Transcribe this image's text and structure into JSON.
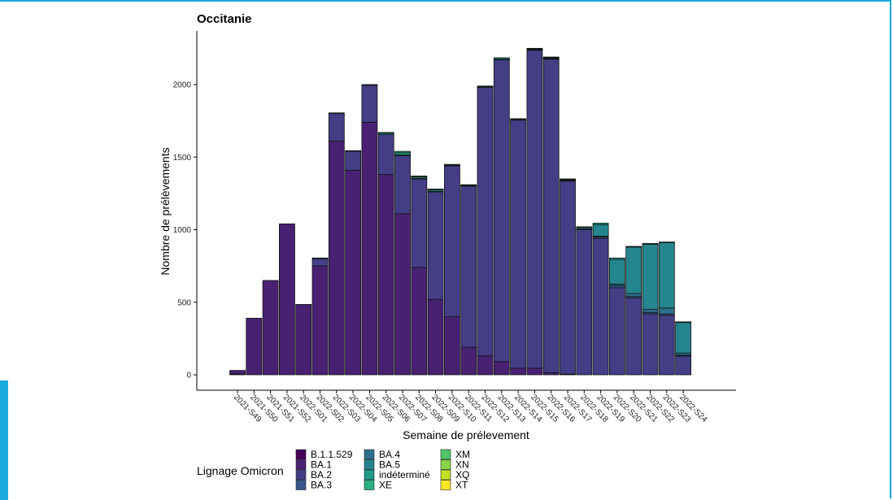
{
  "chart_data": {
    "type": "bar",
    "stacked": true,
    "title": "Occitanie",
    "xlabel": "Semaine de prélevement",
    "ylabel": "Nombre de prélèvements",
    "ylim": [
      0,
      2380
    ],
    "yticks": [
      0,
      500,
      1000,
      1500,
      2000
    ],
    "grid": false,
    "legend_position": "bottom",
    "legend_title": "Lignage Omicron",
    "categories": [
      "2021-S49",
      "2021-S50",
      "2021-S51",
      "2021-S52",
      "2022-S01",
      "2022-S02",
      "2022-S03",
      "2022-S04",
      "2022-S05",
      "2022-S06",
      "2022-S07",
      "2022-S08",
      "2022-S09",
      "2022-S10",
      "2022-S11",
      "2022-S12",
      "2022-S13",
      "2022-S14",
      "2022-S15",
      "2022-S16",
      "2022-S17",
      "2022-S18",
      "2022-S19",
      "2022-S20",
      "2022-S21",
      "2022-S22",
      "2022-S23",
      "2022-S24"
    ],
    "series": [
      {
        "name": "B.1.1.529",
        "color": "#440154",
        "values": [
          5,
          0,
          0,
          0,
          0,
          0,
          0,
          0,
          0,
          0,
          0,
          0,
          0,
          0,
          0,
          0,
          0,
          0,
          0,
          0,
          0,
          0,
          0,
          0,
          0,
          0,
          0,
          0
        ]
      },
      {
        "name": "BA.1",
        "color": "#482173",
        "values": [
          25,
          390,
          650,
          1040,
          485,
          750,
          1610,
          1410,
          1740,
          1380,
          1110,
          740,
          520,
          400,
          190,
          130,
          90,
          45,
          45,
          15,
          5,
          0,
          0,
          0,
          0,
          0,
          0,
          0
        ]
      },
      {
        "name": "BA.2",
        "color": "#433e85",
        "values": [
          0,
          0,
          0,
          0,
          0,
          50,
          190,
          130,
          255,
          275,
          400,
          610,
          740,
          1040,
          1110,
          1850,
          2080,
          1710,
          2190,
          2160,
          1330,
          1000,
          940,
          600,
          530,
          420,
          410,
          130
        ]
      },
      {
        "name": "BA.3",
        "color": "#38588c",
        "values": [
          0,
          0,
          0,
          0,
          0,
          5,
          0,
          0,
          0,
          0,
          0,
          0,
          0,
          0,
          0,
          0,
          0,
          0,
          5,
          5,
          5,
          5,
          10,
          15,
          10,
          10,
          10,
          5
        ]
      },
      {
        "name": "BA.4",
        "color": "#2d708e",
        "values": [
          0,
          0,
          0,
          0,
          0,
          0,
          0,
          0,
          0,
          0,
          0,
          0,
          0,
          0,
          0,
          0,
          0,
          0,
          0,
          0,
          0,
          0,
          5,
          10,
          20,
          20,
          40,
          15
        ]
      },
      {
        "name": "BA.5",
        "color": "#25858e",
        "values": [
          0,
          0,
          0,
          0,
          0,
          0,
          0,
          0,
          0,
          0,
          5,
          5,
          5,
          5,
          5,
          5,
          5,
          5,
          5,
          5,
          5,
          10,
          80,
          170,
          320,
          450,
          450,
          210
        ]
      },
      {
        "name": "indéterminé",
        "color": "#1e9b8a",
        "values": [
          0,
          0,
          0,
          0,
          0,
          0,
          5,
          5,
          5,
          10,
          15,
          10,
          10,
          5,
          5,
          5,
          10,
          5,
          5,
          5,
          5,
          5,
          10,
          10,
          5,
          5,
          5,
          5
        ]
      },
      {
        "name": "XE",
        "color": "#2ab07f",
        "values": [
          0,
          0,
          0,
          0,
          0,
          0,
          0,
          0,
          0,
          5,
          10,
          5,
          5,
          0,
          0,
          0,
          0,
          0,
          0,
          0,
          0,
          0,
          0,
          0,
          0,
          0,
          0,
          0
        ]
      },
      {
        "name": "XM",
        "color": "#52c569",
        "values": [
          0,
          0,
          0,
          0,
          0,
          0,
          0,
          0,
          0,
          0,
          0,
          0,
          0,
          0,
          0,
          0,
          0,
          0,
          0,
          0,
          0,
          0,
          0,
          0,
          0,
          0,
          0,
          0
        ]
      },
      {
        "name": "XN",
        "color": "#86d549",
        "values": [
          0,
          0,
          0,
          0,
          0,
          0,
          0,
          0,
          0,
          0,
          0,
          0,
          0,
          0,
          0,
          0,
          0,
          0,
          0,
          0,
          0,
          0,
          0,
          0,
          0,
          0,
          0,
          0
        ]
      },
      {
        "name": "XQ",
        "color": "#c2df23",
        "values": [
          0,
          0,
          0,
          0,
          0,
          0,
          0,
          0,
          0,
          0,
          0,
          0,
          0,
          0,
          0,
          0,
          0,
          0,
          0,
          0,
          0,
          0,
          0,
          0,
          0,
          0,
          0,
          0
        ]
      },
      {
        "name": "XT",
        "color": "#fde725",
        "values": [
          0,
          0,
          0,
          0,
          0,
          0,
          0,
          0,
          0,
          0,
          0,
          0,
          0,
          0,
          0,
          0,
          0,
          0,
          0,
          0,
          0,
          0,
          0,
          0,
          0,
          0,
          0,
          0
        ]
      }
    ]
  }
}
